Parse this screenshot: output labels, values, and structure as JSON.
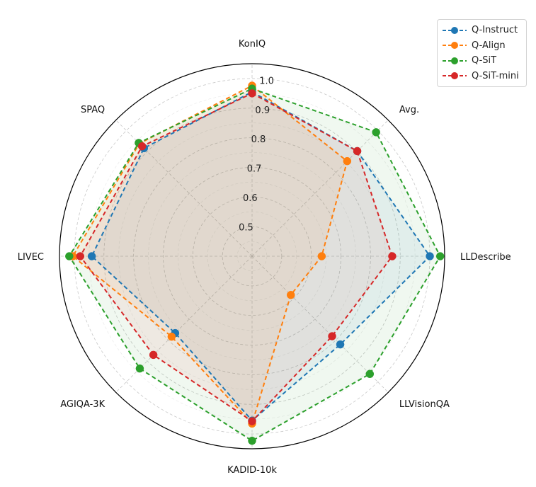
{
  "chart_data": {
    "type": "radar",
    "axes": [
      "KonIQ",
      "Avg.",
      "LLDescribe",
      "LLVisionQA",
      "KADID-10k",
      "AGIQA-3K",
      "LIVEC",
      "SPAQ"
    ],
    "rlim": [
      0.4,
      1.05
    ],
    "radial_ticks": [
      "0.5",
      "0.6",
      "0.7",
      "0.8",
      "0.9",
      "1.0"
    ],
    "radial_tick_values": [
      0.5,
      0.6,
      0.7,
      0.8,
      0.9,
      1.0
    ],
    "grid": true,
    "legend_position": "top-right",
    "series": [
      {
        "name": "Q-Instruct",
        "color": "#1f77b4",
        "values": [
          0.955,
          0.902,
          1.0,
          0.821,
          0.955,
          0.767,
          0.941,
          0.916
        ]
      },
      {
        "name": "Q-Align",
        "color": "#ff7f0e",
        "values": [
          0.976,
          0.854,
          0.635,
          0.585,
          0.965,
          0.784,
          1.005,
          0.938
        ]
      },
      {
        "name": "Q-SiT",
        "color": "#2ca02c",
        "values": [
          0.966,
          0.992,
          1.035,
          0.962,
          1.023,
          0.936,
          1.017,
          0.941
        ]
      },
      {
        "name": "Q-SiT-mini",
        "color": "#d62728",
        "values": [
          0.95,
          0.902,
          0.873,
          0.782,
          0.957,
          0.871,
          0.98,
          0.925
        ]
      }
    ]
  }
}
